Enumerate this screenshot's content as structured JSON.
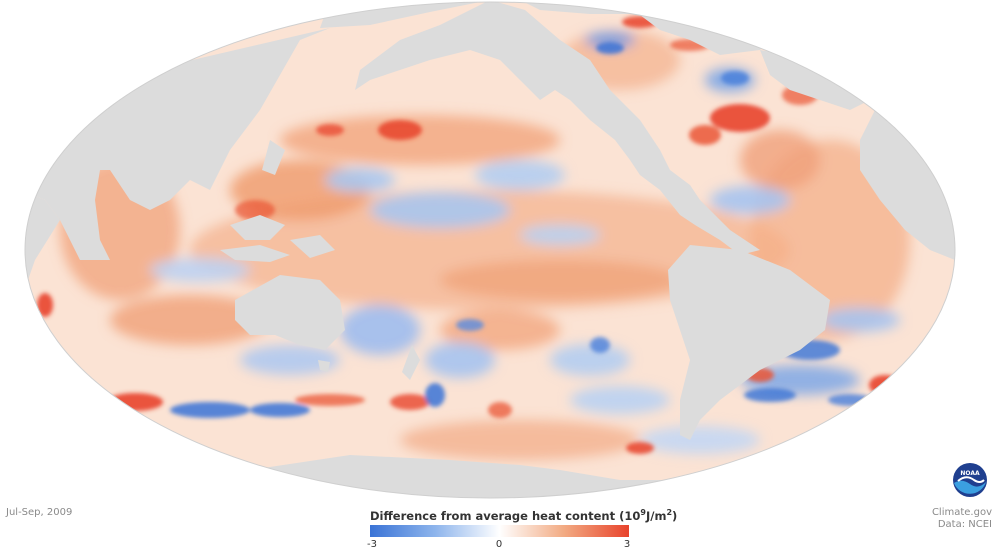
{
  "map": {
    "projection": "Mollweide (Pacific-centered)",
    "variable": "ocean heat content anomaly",
    "land_color": "#dcdcdc",
    "background_color": "#ffffff"
  },
  "period_label": "Jul-Sep, 2009",
  "legend": {
    "title_main": "Difference from average heat content",
    "title_unit_base": "10",
    "title_unit_exp": "9",
    "title_unit_mid": "J/m",
    "title_unit_exp2": "2",
    "tick_min": "-3",
    "tick_mid": "0",
    "tick_max": "3",
    "colors": [
      "#3a73d6",
      "#8db4ec",
      "#ffffff",
      "#f2aa82",
      "#e8432c"
    ]
  },
  "credits": {
    "source_site": "Climate.gov",
    "data_source": "Data: NCEI"
  },
  "logo": {
    "text": "NOAA",
    "colors": [
      "#1f3f8f",
      "#3b9fe0",
      "#ffffff"
    ]
  }
}
